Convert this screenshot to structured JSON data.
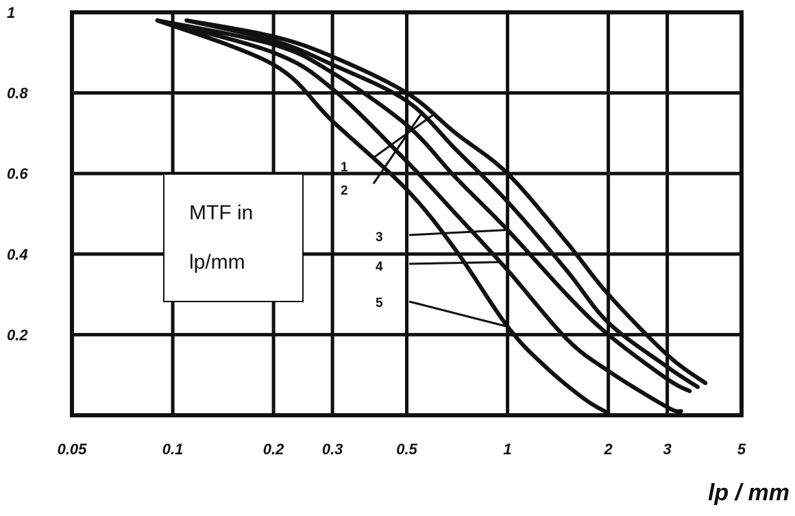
{
  "chart_data": {
    "type": "line",
    "title": "",
    "xlabel": "lp / mm",
    "ylabel": "",
    "x_scale": "log",
    "xlim": [
      0.05,
      5
    ],
    "ylim": [
      0,
      1
    ],
    "x_ticks": [
      {
        "value": 0.05,
        "label": "0.05"
      },
      {
        "value": 0.1,
        "label": "0.1"
      },
      {
        "value": 0.2,
        "label": "0.2"
      },
      {
        "value": 0.3,
        "label": "0.3"
      },
      {
        "value": 0.5,
        "label": "0.5"
      },
      {
        "value": 1,
        "label": "1"
      },
      {
        "value": 2,
        "label": "2"
      },
      {
        "value": 3,
        "label": "3"
      },
      {
        "value": 5,
        "label": "5"
      }
    ],
    "y_ticks": [
      {
        "value": 0.2,
        "label": "0.2"
      },
      {
        "value": 0.4,
        "label": "0.4"
      },
      {
        "value": 0.6,
        "label": "0.6"
      },
      {
        "value": 0.8,
        "label": "0.8"
      },
      {
        "value": 1,
        "label": "1"
      }
    ],
    "grid": true,
    "annotation": {
      "lines": [
        "MTF in",
        "lp/mm"
      ]
    },
    "series": [
      {
        "label": "1",
        "points": [
          [
            0.11,
            0.98
          ],
          [
            0.2,
            0.94
          ],
          [
            0.3,
            0.89
          ],
          [
            0.5,
            0.8
          ],
          [
            0.7,
            0.7
          ],
          [
            1.0,
            0.6
          ],
          [
            1.5,
            0.43
          ],
          [
            2.0,
            0.3
          ],
          [
            3.0,
            0.15
          ],
          [
            3.9,
            0.08
          ]
        ]
      },
      {
        "label": "2",
        "points": [
          [
            0.11,
            0.98
          ],
          [
            0.2,
            0.93
          ],
          [
            0.3,
            0.87
          ],
          [
            0.5,
            0.78
          ],
          [
            0.7,
            0.66
          ],
          [
            1.0,
            0.53
          ],
          [
            1.5,
            0.36
          ],
          [
            2.0,
            0.23
          ],
          [
            3.0,
            0.12
          ],
          [
            3.7,
            0.07
          ]
        ]
      },
      {
        "label": "3",
        "points": [
          [
            0.09,
            0.98
          ],
          [
            0.2,
            0.92
          ],
          [
            0.3,
            0.85
          ],
          [
            0.5,
            0.72
          ],
          [
            0.7,
            0.59
          ],
          [
            1.0,
            0.46
          ],
          [
            1.5,
            0.3
          ],
          [
            2.0,
            0.2
          ],
          [
            3.0,
            0.09
          ],
          [
            3.5,
            0.06
          ]
        ]
      },
      {
        "label": "4",
        "points": [
          [
            0.09,
            0.98
          ],
          [
            0.2,
            0.9
          ],
          [
            0.3,
            0.81
          ],
          [
            0.5,
            0.63
          ],
          [
            0.7,
            0.5
          ],
          [
            1.0,
            0.36
          ],
          [
            1.5,
            0.19
          ],
          [
            2.0,
            0.11
          ],
          [
            3.0,
            0.02
          ],
          [
            3.3,
            0.01
          ]
        ]
      },
      {
        "label": "5",
        "points": [
          [
            0.09,
            0.98
          ],
          [
            0.2,
            0.87
          ],
          [
            0.3,
            0.73
          ],
          [
            0.5,
            0.56
          ],
          [
            0.7,
            0.41
          ],
          [
            1.0,
            0.22
          ],
          [
            1.3,
            0.12
          ],
          [
            1.7,
            0.04
          ],
          [
            2.0,
            0.005
          ]
        ]
      }
    ]
  }
}
